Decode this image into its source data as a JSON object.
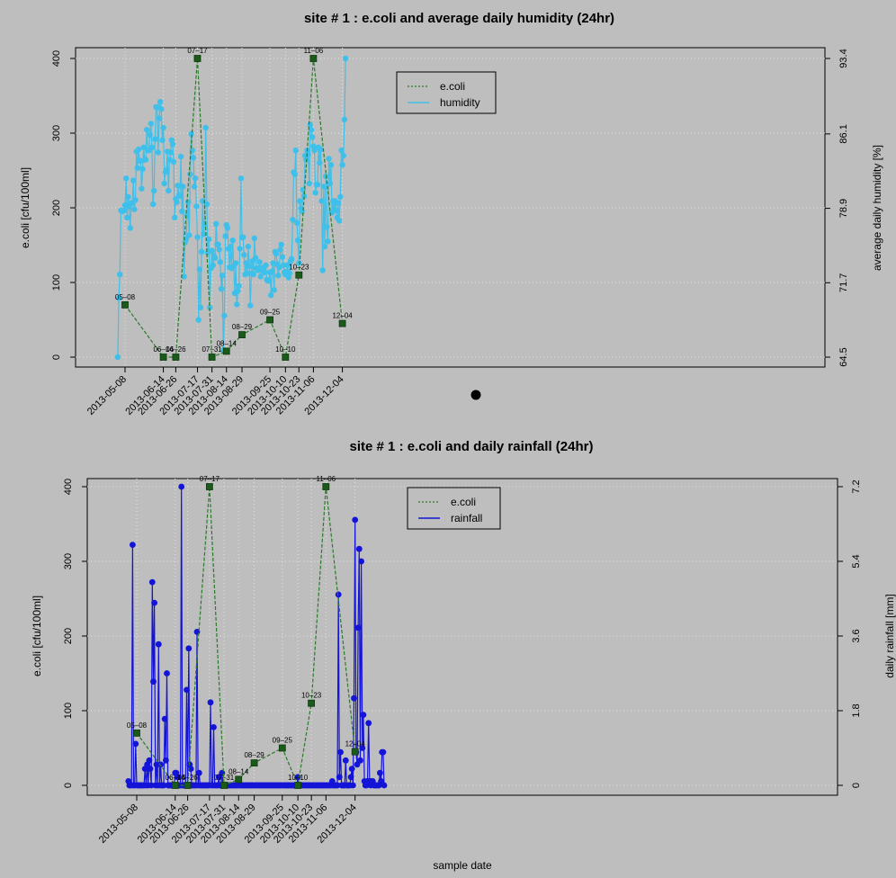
{
  "chart_data": [
    {
      "type": "line",
      "title": "site # 1 : e.coli and average daily humidity (24hr)",
      "ylabel": "e.coli [cfu/100ml]",
      "y2label": "average daily humidity [%]",
      "ylim": [
        0,
        400
      ],
      "y2_ticks": [
        "64.5",
        "71.7",
        "78.9",
        "86.1",
        "93.4"
      ],
      "y2lim": [
        64.5,
        93.4
      ],
      "yticks": [
        "0",
        "100",
        "200",
        "300",
        "400"
      ],
      "xticks": [
        "2013-05-08",
        "2013-06-14",
        "2013-06-26",
        "2013-07-17",
        "2013-07-31",
        "2013-08-14",
        "2013-08-29",
        "2013-09-25",
        "2013-10-10",
        "2013-10-23",
        "2013-11-06",
        "2013-12-04"
      ],
      "legend": {
        "placement": "top-center",
        "items": [
          "e.coli",
          "humidity"
        ]
      },
      "colors": {
        "ecoli_line": "#2a7a2a",
        "ecoli_marker": "#1a5a1a",
        "series2": "#3ec0ea"
      },
      "ecoli": {
        "dates": [
          "2013-05-08",
          "2013-06-14",
          "2013-06-26",
          "2013-07-17",
          "2013-07-31",
          "2013-08-14",
          "2013-08-29",
          "2013-09-25",
          "2013-10-10",
          "2013-10-23",
          "2013-11-06",
          "2013-12-04"
        ],
        "labels": [
          "05–08",
          "06–14",
          "06–26",
          "07–17",
          "07–31",
          "08–14",
          "08–29",
          "09–25",
          "10–10",
          "10–23",
          "11–06",
          "12–04"
        ],
        "values": [
          70,
          0,
          0,
          400,
          0,
          8,
          30,
          50,
          0,
          110,
          400,
          45
        ]
      },
      "series2": {
        "name": "humidity",
        "x_start": "2013-05-01",
        "values": [
          64.5,
          70.2,
          72.5,
          78.7,
          78.7,
          78.6,
          78.7,
          79.2,
          81.8,
          78.0,
          80.0,
          79.1,
          77.0,
          79.4,
          79.4,
          81.6,
          78.8,
          79.7,
          84.4,
          82.8,
          84.6,
          83.5,
          83.5,
          80.8,
          82.7,
          84.8,
          83.6,
          83.6,
          86.5,
          84.5,
          84.5,
          86.0,
          87.1,
          84.8,
          79.3,
          80.6,
          85.6,
          88.7,
          88.7,
          84.3,
          87.6,
          89.2,
          88.5,
          85.5,
          86.7,
          81.3,
          82.4,
          82.6,
          84.4,
          80.6,
          83.6,
          84.3,
          85.5,
          85.1,
          83.4,
          78.0,
          79.8,
          79.5,
          81.1,
          80.1,
          80.1,
          83.9,
          78.6,
          81.0,
          72.3,
          75.6,
          75.9,
          78.2,
          79.5,
          76.3,
          82.2,
          86.1,
          84.5,
          83.8,
          81.0,
          81.8,
          79.1,
          76.1,
          68.1,
          73.0,
          69.3,
          74.7,
          79.6,
          76.4,
          77.4,
          86.7,
          79.3,
          74.6,
          75.9,
          69.3,
          73.1,
          74.8,
          73.4,
          74.3,
          74.1,
          77.4,
          75.4,
          75.4,
          74.9,
          73.7,
          71.1,
          72.4,
          65.2,
          68.5,
          76.2,
          77.3,
          77.0,
          75.0,
          73.2,
          75.2,
          73.1,
          75.8,
          73.3,
          70.7,
          73.6,
          69.6,
          70.9,
          71.4,
          75.0,
          81.8,
          76.1,
          76.1,
          74.4,
          72.5,
          73.6,
          72.6,
          75.2,
          73.3,
          69.5,
          72.6,
          73.8,
          72.5,
          76.0,
          74.1,
          73.1,
          72.9,
          73.1,
          73.7,
          72.3,
          73.1,
          72.9,
          73.2,
          72.7,
          73.4,
          72.0,
          71.9,
          71.9,
          72.7,
          70.5,
          72.8,
          73.6,
          71.0,
          74.7,
          74.5,
          73.5,
          72.4,
          73.2,
          74.9,
          75.4,
          74.2,
          73.4,
          72.7,
          72.5,
          72.8,
          73.4,
          72.2,
          72.6,
          73.8,
          74.0,
          77.8,
          82.4,
          82.2,
          84.5,
          77.5,
          75.8,
          73.6,
          79.6,
          78.9,
          78.6,
          80.7,
          80.1,
          84.0,
          83.6,
          84.5,
          84.1,
          81.3,
          87.0,
          86.5,
          85.8,
          84.9,
          84.5,
          80.4,
          81.2,
          81.2,
          84.8,
          83.3,
          84.6,
          79.6,
          72.9,
          81.0,
          75.2,
          82.0,
          77.1,
          75.7,
          83.7,
          81.3,
          83.1,
          78.5,
          79.6,
          78.9,
          79.6,
          78.7,
          78.0,
          79.4,
          77.7,
          80.0,
          84.5,
          83.1,
          84.0,
          87.5,
          93.4
        ]
      }
    },
    {
      "type": "line",
      "title": "site # 1 : e.coli and daily rainfall (24hr)",
      "xlabel": "sample date",
      "ylabel": "e.coli [cfu/100ml]",
      "y2label": "daily rainfall [mm]",
      "ylim": [
        0,
        400
      ],
      "y2_ticks": [
        "0",
        "1.8",
        "3.6",
        "5.4",
        "7.2"
      ],
      "y2lim": [
        0,
        7.2
      ],
      "yticks": [
        "0",
        "100",
        "200",
        "300",
        "400"
      ],
      "xticks": [
        "2013-05-08",
        "2013-06-14",
        "2013-06-26",
        "2013-07-17",
        "2013-07-31",
        "2013-08-14",
        "2013-08-29",
        "2013-09-25",
        "2013-10-10",
        "2013-10-23",
        "2013-11-06",
        "2013-12-04"
      ],
      "legend": {
        "placement": "top-center",
        "items": [
          "e.coli",
          "rainfall"
        ]
      },
      "colors": {
        "ecoli_line": "#2a7a2a",
        "ecoli_marker": "#1a5a1a",
        "series2": "#1414d8"
      },
      "ecoli": {
        "dates": [
          "2013-05-08",
          "2013-06-14",
          "2013-06-26",
          "2013-07-17",
          "2013-07-31",
          "2013-08-14",
          "2013-08-29",
          "2013-09-25",
          "2013-10-10",
          "2013-10-23",
          "2013-11-06",
          "2013-12-04"
        ],
        "labels": [
          "05–08",
          "06–14",
          "06–26",
          "07–17",
          "07–31",
          "08–14",
          "08–29",
          "09–25",
          "10–10",
          "10–23",
          "11–06",
          "12–04"
        ],
        "values": [
          70,
          0,
          0,
          400,
          0,
          8,
          30,
          50,
          0,
          110,
          400,
          45
        ]
      },
      "series2": {
        "name": "rainfall",
        "x_start": "2013-04-30",
        "values": [
          0.1,
          0.0,
          0.0,
          0.0,
          5.8,
          0.0,
          0.0,
          1.0,
          0.0,
          0.0,
          0.0,
          0.0,
          0.0,
          0.0,
          0.0,
          0.0,
          0.4,
          0.0,
          0.5,
          0.0,
          0.6,
          0.4,
          0.0,
          4.9,
          2.5,
          4.4,
          0.0,
          0.5,
          0.0,
          3.4,
          0.0,
          0.5,
          0.0,
          0.0,
          0.0,
          1.6,
          0.6,
          2.7,
          0.0,
          0.0,
          0.0,
          0.0,
          0.0,
          0.0,
          0.0,
          0.3,
          0.3,
          0.2,
          0.0,
          0.0,
          0.0,
          7.2,
          0.0,
          0.0,
          0.0,
          0.0,
          2.3,
          0.0,
          3.3,
          0.5,
          0.4,
          0.0,
          0.0,
          0.0,
          0.0,
          0.0,
          3.7,
          0.0,
          0.3,
          0.0,
          0.0,
          0.0,
          0.0,
          0.0,
          0.0,
          0.0,
          0.0,
          0.0,
          0.0,
          2.0,
          0.0,
          0.0,
          1.4,
          0.0,
          0.0,
          0.0,
          0.0,
          0.2,
          0.0,
          0.0,
          0.3,
          0.0,
          0.0,
          0.0,
          0.0,
          0.0,
          0.0,
          0.0,
          0.0,
          0.0,
          0.0,
          0.0,
          0.0,
          0.0,
          0.0,
          0.0,
          0.0,
          0.0,
          0.0,
          0.0,
          0.0,
          0.0,
          0.0,
          0.0,
          0.0,
          0.0,
          0.0,
          0.0,
          0.0,
          0.0,
          0.0,
          0.0,
          0.0,
          0.0,
          0.0,
          0.0,
          0.0,
          0.0,
          0.0,
          0.0,
          0.0,
          0.0,
          0.0,
          0.0,
          0.0,
          0.0,
          0.0,
          0.0,
          0.0,
          0.0,
          0.0,
          0.0,
          0.0,
          0.0,
          0.0,
          0.0,
          0.0,
          0.0,
          0.0,
          0.0,
          0.0,
          0.0,
          0.0,
          0.0,
          0.0,
          0.0,
          0.0,
          0.0,
          0.0,
          0.0,
          0.0,
          0.0,
          0.0,
          0.2,
          0.0,
          0.0,
          0.0,
          0.0,
          0.0,
          0.0,
          0.0,
          0.0,
          0.0,
          0.0,
          0.0,
          0.0,
          0.0,
          0.0,
          0.0,
          0.0,
          0.0,
          0.0,
          0.0,
          0.0,
          0.0,
          0.0,
          0.0,
          0.0,
          0.0,
          0.0,
          0.0,
          0.0,
          0.0,
          0.0,
          0.0,
          0.0,
          0.1,
          0.0,
          0.0,
          0.0,
          0.0,
          0.0,
          4.6,
          0.2,
          0.8,
          0.0,
          0.0,
          0.0,
          0.0,
          0.6,
          0.0,
          0.0,
          0.0,
          0.0,
          0.2,
          0.4,
          0.0,
          2.1,
          6.4,
          0.8,
          0.5,
          3.8,
          5.7,
          0.6,
          5.4,
          0.9,
          1.7,
          0.1,
          0.0,
          0.0,
          0.1,
          1.5,
          0.1,
          0.0,
          0.1,
          0.1,
          0.0,
          0.0,
          0.0,
          0.0,
          0.0,
          0.0,
          0.3,
          0.1,
          0.8,
          0.8,
          0.0
        ]
      }
    }
  ],
  "overlays": {
    "stray_dot_color": "#000000"
  }
}
